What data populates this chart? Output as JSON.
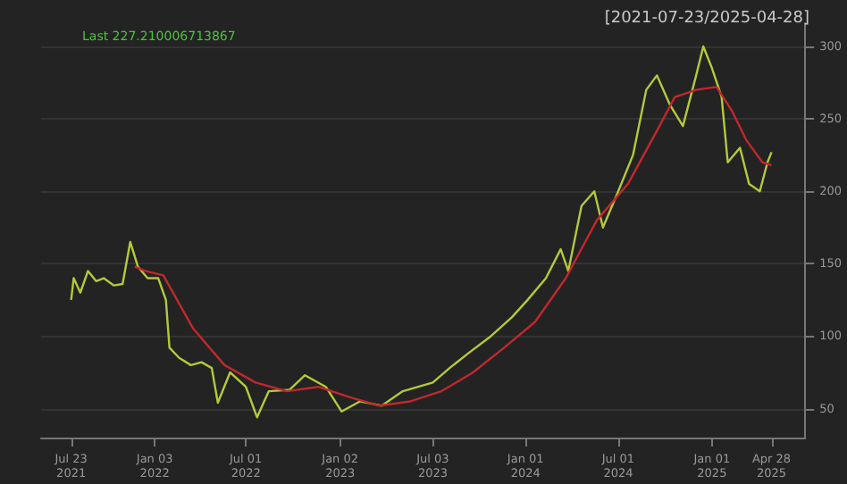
{
  "chart_data": {
    "type": "line",
    "title": "[2021-07-23/2025-04-28]",
    "annotations": [
      "Last 227.210006713867"
    ],
    "xlim": [
      "2021-05-25",
      "2025-07-03"
    ],
    "ylim": [
      30,
      316
    ],
    "xticks": [
      {
        "value": "2021-07-23",
        "label": "Jul 23\n2021"
      },
      {
        "value": "2022-01-03",
        "label": "Jan 03\n2022"
      },
      {
        "value": "2022-07-01",
        "label": "Jul 01\n2022"
      },
      {
        "value": "2023-01-02",
        "label": "Jan 02\n2023"
      },
      {
        "value": "2023-07-03",
        "label": "Jul 03\n2023"
      },
      {
        "value": "2024-01-01",
        "label": "Jan 01\n2024"
      },
      {
        "value": "2024-07-01",
        "label": "Jul 01\n2024"
      },
      {
        "value": "2025-01-01",
        "label": "Jan 01\n2025"
      },
      {
        "value": "2025-04-28",
        "label": "Apr 28\n2025"
      }
    ],
    "yticks": [
      50,
      100,
      150,
      200,
      250,
      300
    ],
    "grid": "y",
    "marker": "none",
    "line_style": "solid",
    "series": [
      {
        "color": "#b5c93a",
        "x": [
          "2021-07-23",
          "2021-07-28",
          "2021-08-10",
          "2021-08-25",
          "2021-09-10",
          "2021-09-25",
          "2021-10-15",
          "2021-11-01",
          "2021-11-16",
          "2021-12-01",
          "2021-12-20",
          "2022-01-10",
          "2022-01-25",
          "2022-02-01",
          "2022-02-20",
          "2022-03-15",
          "2022-04-05",
          "2022-04-25",
          "2022-05-07",
          "2022-05-31",
          "2022-07-01",
          "2022-07-23",
          "2022-08-15",
          "2022-09-25",
          "2022-10-25",
          "2022-12-05",
          "2023-01-05",
          "2023-02-10",
          "2023-03-25",
          "2023-05-05",
          "2023-07-03",
          "2023-08-05",
          "2023-09-10",
          "2023-10-25",
          "2023-12-05",
          "2024-01-05",
          "2024-02-10",
          "2024-03-10",
          "2024-03-25",
          "2024-04-20",
          "2024-05-15",
          "2024-06-01",
          "2024-07-01",
          "2024-07-30",
          "2024-08-25",
          "2024-09-15",
          "2024-10-10",
          "2024-11-05",
          "2024-12-01",
          "2024-12-15",
          "2025-01-01",
          "2025-01-20",
          "2025-02-01",
          "2025-02-25",
          "2025-03-15",
          "2025-04-05",
          "2025-04-20",
          "2025-04-28"
        ],
        "values": [
          125,
          140,
          130,
          145,
          138,
          140,
          135,
          136,
          165,
          148,
          140,
          140,
          125,
          92,
          85,
          80,
          82,
          78,
          54,
          75,
          65,
          44,
          62,
          63,
          73,
          65,
          48,
          55,
          52,
          62,
          68,
          78,
          88,
          100,
          113,
          125,
          140,
          160,
          145,
          190,
          200,
          175,
          200,
          225,
          270,
          280,
          260,
          245,
          280,
          300,
          285,
          265,
          220,
          230,
          205,
          200,
          220,
          227
        ]
      },
      {
        "color": "#c0282d",
        "x": [
          "2021-11-25",
          "2021-12-15",
          "2022-01-20",
          "2022-03-20",
          "2022-05-20",
          "2022-07-20",
          "2022-09-20",
          "2022-11-20",
          "2023-01-20",
          "2023-03-20",
          "2023-05-20",
          "2023-07-20",
          "2023-09-20",
          "2023-11-20",
          "2024-01-20",
          "2024-03-20",
          "2024-05-20",
          "2024-07-20",
          "2024-09-20",
          "2024-10-20",
          "2024-12-01",
          "2025-01-10",
          "2025-02-10",
          "2025-03-10",
          "2025-04-10",
          "2025-04-28"
        ],
        "values": [
          148,
          145,
          142,
          105,
          80,
          68,
          62,
          65,
          58,
          52,
          55,
          62,
          75,
          92,
          110,
          140,
          180,
          205,
          245,
          265,
          270,
          272,
          255,
          235,
          220,
          218
        ]
      }
    ]
  }
}
